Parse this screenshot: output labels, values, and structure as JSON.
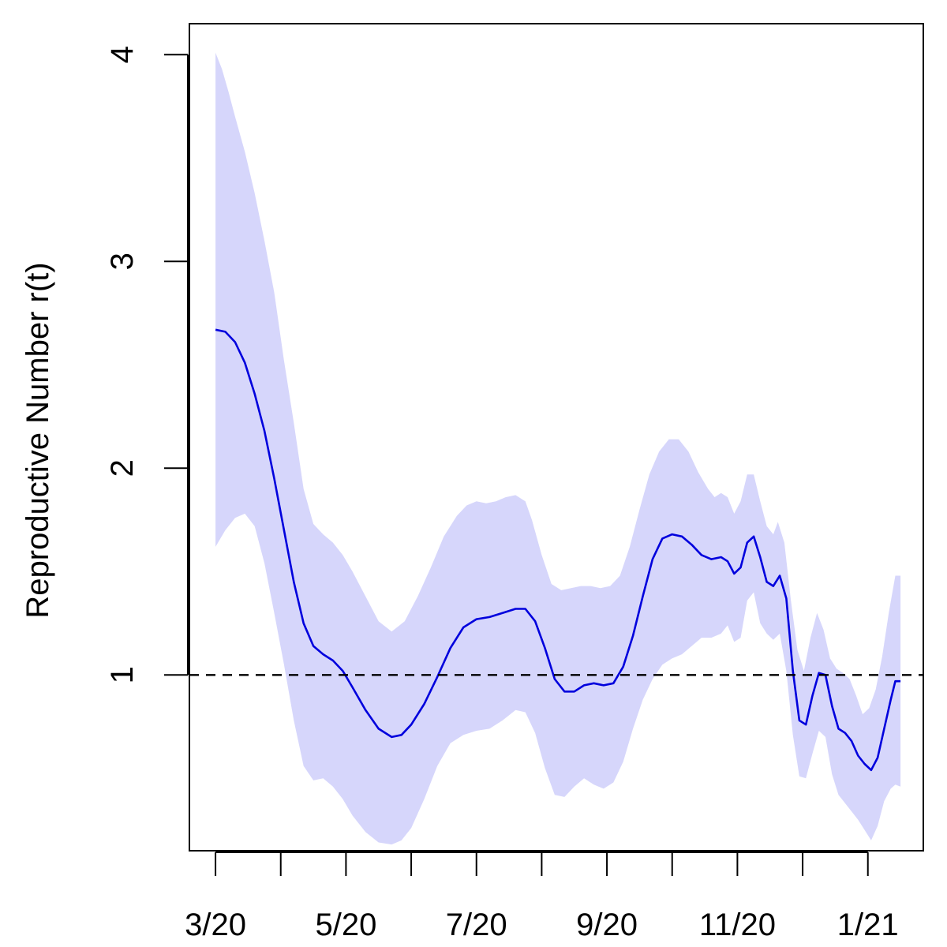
{
  "chart_data": {
    "type": "line",
    "title": "",
    "xlabel": "",
    "ylabel": "Reproductive Number r(t)",
    "x_axis": {
      "unit": "months since 2020-03-01",
      "xlim": [
        -0.4,
        10.85
      ],
      "ticks": [
        0,
        1,
        2,
        3,
        4,
        5,
        6,
        7,
        8,
        9,
        10
      ],
      "tick_labels": [
        {
          "x": 0,
          "label": "3/20"
        },
        {
          "x": 2,
          "label": "5/20"
        },
        {
          "x": 4,
          "label": "7/20"
        },
        {
          "x": 6,
          "label": "9/20"
        },
        {
          "x": 8,
          "label": "11/20"
        },
        {
          "x": 10,
          "label": "1/21"
        }
      ]
    },
    "y_axis": {
      "ylim": [
        0.15,
        4.15
      ],
      "ticks": [
        1,
        2,
        3,
        4
      ],
      "tick_labels": [
        "1",
        "2",
        "3",
        "4"
      ]
    },
    "reference_line": {
      "y": 1,
      "style": "dashed",
      "color": "#000000"
    },
    "band_color": "#d6d6fb",
    "line_color": "#0000dd",
    "series": [
      {
        "name": "estimate",
        "role": "line",
        "points": [
          [
            0.0,
            2.67
          ],
          [
            0.15,
            2.66
          ],
          [
            0.3,
            2.61
          ],
          [
            0.45,
            2.51
          ],
          [
            0.6,
            2.36
          ],
          [
            0.75,
            2.18
          ],
          [
            0.9,
            1.95
          ],
          [
            1.05,
            1.7
          ],
          [
            1.2,
            1.45
          ],
          [
            1.35,
            1.25
          ],
          [
            1.5,
            1.14
          ],
          [
            1.65,
            1.1
          ],
          [
            1.8,
            1.07
          ],
          [
            1.95,
            1.02
          ],
          [
            2.1,
            0.94
          ],
          [
            2.3,
            0.83
          ],
          [
            2.5,
            0.74
          ],
          [
            2.7,
            0.7
          ],
          [
            2.85,
            0.71
          ],
          [
            3.0,
            0.76
          ],
          [
            3.2,
            0.86
          ],
          [
            3.4,
            0.99
          ],
          [
            3.6,
            1.13
          ],
          [
            3.8,
            1.23
          ],
          [
            4.0,
            1.27
          ],
          [
            4.2,
            1.28
          ],
          [
            4.4,
            1.3
          ],
          [
            4.6,
            1.32
          ],
          [
            4.75,
            1.32
          ],
          [
            4.9,
            1.26
          ],
          [
            5.05,
            1.13
          ],
          [
            5.2,
            0.98
          ],
          [
            5.35,
            0.92
          ],
          [
            5.5,
            0.92
          ],
          [
            5.65,
            0.95
          ],
          [
            5.8,
            0.96
          ],
          [
            5.95,
            0.95
          ],
          [
            6.1,
            0.96
          ],
          [
            6.25,
            1.04
          ],
          [
            6.4,
            1.19
          ],
          [
            6.55,
            1.38
          ],
          [
            6.7,
            1.56
          ],
          [
            6.85,
            1.66
          ],
          [
            7.0,
            1.68
          ],
          [
            7.15,
            1.67
          ],
          [
            7.3,
            1.63
          ],
          [
            7.45,
            1.58
          ],
          [
            7.6,
            1.56
          ],
          [
            7.75,
            1.57
          ],
          [
            7.85,
            1.55
          ],
          [
            7.95,
            1.49
          ],
          [
            8.05,
            1.52
          ],
          [
            8.15,
            1.64
          ],
          [
            8.25,
            1.67
          ],
          [
            8.35,
            1.57
          ],
          [
            8.45,
            1.45
          ],
          [
            8.55,
            1.43
          ],
          [
            8.65,
            1.48
          ],
          [
            8.75,
            1.37
          ],
          [
            8.85,
            1.02
          ],
          [
            8.95,
            0.78
          ],
          [
            9.05,
            0.76
          ],
          [
            9.15,
            0.9
          ],
          [
            9.25,
            1.01
          ],
          [
            9.35,
            1.0
          ],
          [
            9.45,
            0.85
          ],
          [
            9.55,
            0.74
          ],
          [
            9.65,
            0.72
          ],
          [
            9.75,
            0.68
          ],
          [
            9.85,
            0.61
          ],
          [
            9.95,
            0.57
          ],
          [
            10.05,
            0.54
          ],
          [
            10.15,
            0.6
          ],
          [
            10.25,
            0.74
          ],
          [
            10.35,
            0.88
          ],
          [
            10.42,
            0.97
          ],
          [
            10.5,
            0.97
          ]
        ]
      },
      {
        "name": "upper bound",
        "role": "band_upper",
        "points": [
          [
            0.0,
            4.01
          ],
          [
            0.1,
            3.93
          ],
          [
            0.2,
            3.82
          ],
          [
            0.3,
            3.7
          ],
          [
            0.45,
            3.53
          ],
          [
            0.6,
            3.33
          ],
          [
            0.75,
            3.1
          ],
          [
            0.9,
            2.85
          ],
          [
            1.05,
            2.52
          ],
          [
            1.2,
            2.22
          ],
          [
            1.35,
            1.9
          ],
          [
            1.5,
            1.73
          ],
          [
            1.65,
            1.68
          ],
          [
            1.8,
            1.64
          ],
          [
            1.95,
            1.58
          ],
          [
            2.1,
            1.5
          ],
          [
            2.3,
            1.38
          ],
          [
            2.5,
            1.26
          ],
          [
            2.7,
            1.21
          ],
          [
            2.9,
            1.26
          ],
          [
            3.1,
            1.38
          ],
          [
            3.3,
            1.52
          ],
          [
            3.5,
            1.67
          ],
          [
            3.7,
            1.77
          ],
          [
            3.85,
            1.82
          ],
          [
            4.0,
            1.84
          ],
          [
            4.15,
            1.83
          ],
          [
            4.3,
            1.84
          ],
          [
            4.45,
            1.86
          ],
          [
            4.6,
            1.87
          ],
          [
            4.75,
            1.84
          ],
          [
            4.85,
            1.75
          ],
          [
            5.0,
            1.58
          ],
          [
            5.15,
            1.44
          ],
          [
            5.3,
            1.41
          ],
          [
            5.45,
            1.42
          ],
          [
            5.6,
            1.43
          ],
          [
            5.75,
            1.43
          ],
          [
            5.9,
            1.42
          ],
          [
            6.05,
            1.43
          ],
          [
            6.2,
            1.48
          ],
          [
            6.35,
            1.62
          ],
          [
            6.5,
            1.8
          ],
          [
            6.65,
            1.97
          ],
          [
            6.8,
            2.08
          ],
          [
            6.95,
            2.14
          ],
          [
            7.1,
            2.14
          ],
          [
            7.25,
            2.08
          ],
          [
            7.4,
            1.98
          ],
          [
            7.55,
            1.9
          ],
          [
            7.65,
            1.86
          ],
          [
            7.75,
            1.88
          ],
          [
            7.85,
            1.86
          ],
          [
            7.95,
            1.78
          ],
          [
            8.05,
            1.84
          ],
          [
            8.15,
            1.97
          ],
          [
            8.25,
            1.97
          ],
          [
            8.35,
            1.84
          ],
          [
            8.45,
            1.72
          ],
          [
            8.55,
            1.68
          ],
          [
            8.62,
            1.74
          ],
          [
            8.72,
            1.64
          ],
          [
            8.82,
            1.36
          ],
          [
            8.92,
            1.12
          ],
          [
            9.02,
            1.02
          ],
          [
            9.12,
            1.18
          ],
          [
            9.22,
            1.3
          ],
          [
            9.32,
            1.22
          ],
          [
            9.42,
            1.08
          ],
          [
            9.52,
            1.03
          ],
          [
            9.62,
            1.01
          ],
          [
            9.72,
            0.98
          ],
          [
            9.82,
            0.9
          ],
          [
            9.92,
            0.81
          ],
          [
            10.02,
            0.84
          ],
          [
            10.12,
            0.93
          ],
          [
            10.22,
            1.09
          ],
          [
            10.32,
            1.3
          ],
          [
            10.42,
            1.48
          ],
          [
            10.5,
            1.48
          ]
        ]
      },
      {
        "name": "lower bound",
        "role": "band_lower",
        "points": [
          [
            0.0,
            1.62
          ],
          [
            0.15,
            1.7
          ],
          [
            0.3,
            1.76
          ],
          [
            0.45,
            1.78
          ],
          [
            0.6,
            1.72
          ],
          [
            0.75,
            1.54
          ],
          [
            0.9,
            1.3
          ],
          [
            1.05,
            1.05
          ],
          [
            1.2,
            0.78
          ],
          [
            1.35,
            0.56
          ],
          [
            1.5,
            0.49
          ],
          [
            1.65,
            0.5
          ],
          [
            1.8,
            0.46
          ],
          [
            1.95,
            0.4
          ],
          [
            2.1,
            0.32
          ],
          [
            2.3,
            0.24
          ],
          [
            2.5,
            0.19
          ],
          [
            2.7,
            0.18
          ],
          [
            2.85,
            0.2
          ],
          [
            3.0,
            0.26
          ],
          [
            3.2,
            0.4
          ],
          [
            3.4,
            0.56
          ],
          [
            3.6,
            0.67
          ],
          [
            3.8,
            0.71
          ],
          [
            4.0,
            0.73
          ],
          [
            4.2,
            0.74
          ],
          [
            4.4,
            0.78
          ],
          [
            4.6,
            0.83
          ],
          [
            4.75,
            0.82
          ],
          [
            4.9,
            0.72
          ],
          [
            5.05,
            0.55
          ],
          [
            5.2,
            0.42
          ],
          [
            5.35,
            0.41
          ],
          [
            5.5,
            0.46
          ],
          [
            5.65,
            0.5
          ],
          [
            5.8,
            0.47
          ],
          [
            5.95,
            0.45
          ],
          [
            6.1,
            0.48
          ],
          [
            6.25,
            0.58
          ],
          [
            6.4,
            0.74
          ],
          [
            6.55,
            0.88
          ],
          [
            6.7,
            0.98
          ],
          [
            6.85,
            1.05
          ],
          [
            7.0,
            1.08
          ],
          [
            7.15,
            1.1
          ],
          [
            7.3,
            1.14
          ],
          [
            7.45,
            1.18
          ],
          [
            7.6,
            1.18
          ],
          [
            7.75,
            1.2
          ],
          [
            7.85,
            1.24
          ],
          [
            7.95,
            1.16
          ],
          [
            8.05,
            1.18
          ],
          [
            8.15,
            1.36
          ],
          [
            8.25,
            1.4
          ],
          [
            8.35,
            1.25
          ],
          [
            8.45,
            1.2
          ],
          [
            8.55,
            1.17
          ],
          [
            8.65,
            1.2
          ],
          [
            8.75,
            1.02
          ],
          [
            8.85,
            0.71
          ],
          [
            8.95,
            0.51
          ],
          [
            9.05,
            0.5
          ],
          [
            9.15,
            0.62
          ],
          [
            9.25,
            0.73
          ],
          [
            9.35,
            0.7
          ],
          [
            9.45,
            0.52
          ],
          [
            9.55,
            0.42
          ],
          [
            9.65,
            0.38
          ],
          [
            9.75,
            0.34
          ],
          [
            9.85,
            0.3
          ],
          [
            9.95,
            0.25
          ],
          [
            10.05,
            0.2
          ],
          [
            10.15,
            0.27
          ],
          [
            10.25,
            0.39
          ],
          [
            10.35,
            0.45
          ],
          [
            10.42,
            0.47
          ],
          [
            10.5,
            0.46
          ]
        ]
      }
    ]
  }
}
